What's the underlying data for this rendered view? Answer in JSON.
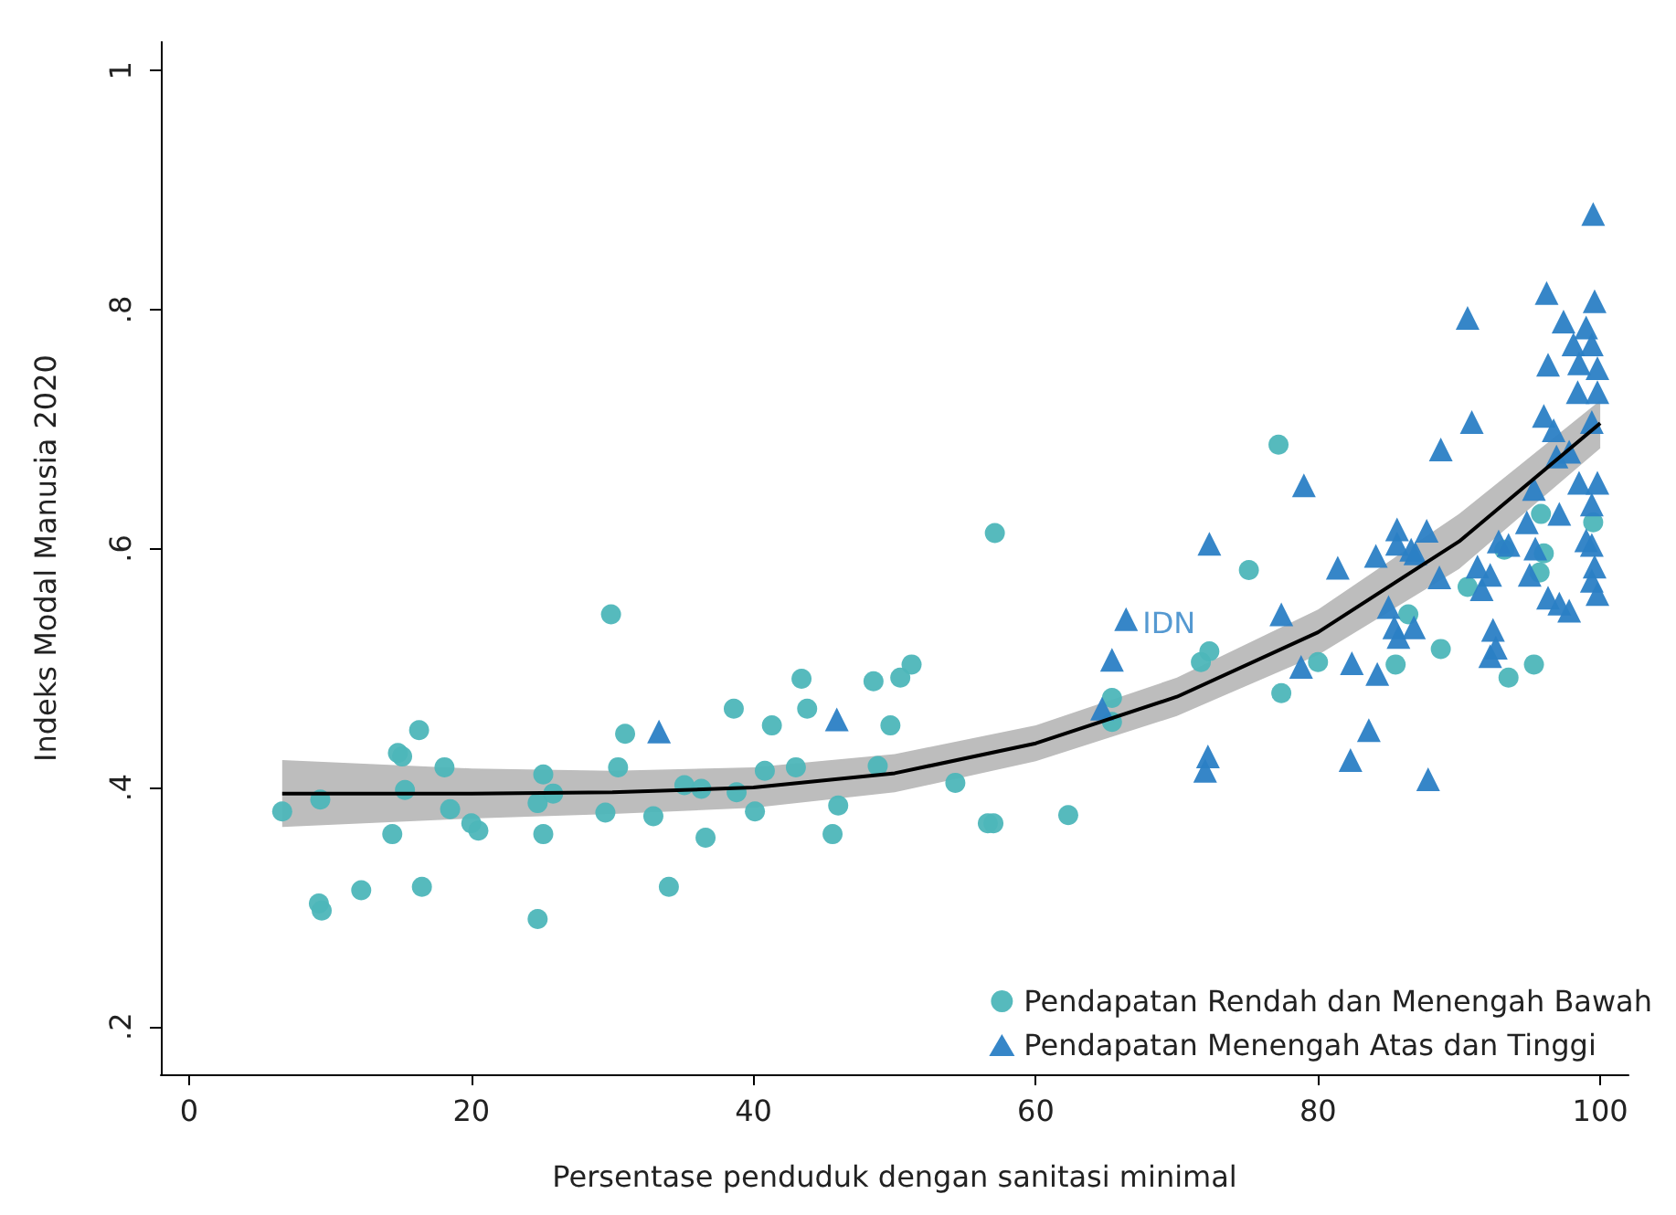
{
  "chart_data": {
    "type": "scatter",
    "xlabel": "Persentase penduduk dengan sanitasi minimal",
    "ylabel": "Indeks Modal Manusia 2020",
    "xlim": [
      -2,
      102
    ],
    "xticks": [
      0,
      20,
      40,
      60,
      80,
      100
    ],
    "ylim": [
      0.16,
      1.024
    ],
    "yticks": [
      {
        "value": 0.2,
        "label": ".2"
      },
      {
        "value": 0.4,
        "label": ".4"
      },
      {
        "value": 0.6,
        "label": ".6"
      },
      {
        "value": 0.8,
        "label": ".8"
      },
      {
        "value": 1,
        "label": "1"
      }
    ],
    "grid": false,
    "legend": "bottom right",
    "annotations": [
      {
        "text": "IDN",
        "x": 66.4,
        "y": 0.541
      }
    ],
    "series": [
      {
        "name": "Pendapatan Rendah dan Menengah Bawah",
        "color": "#4db6b9",
        "marker": "circle",
        "x": [
          6.6,
          9.2,
          9.4,
          9.3,
          12.2,
          14.4,
          14.8,
          15.1,
          15.3,
          16.3,
          16.5,
          18.1,
          18.5,
          20.0,
          20.5,
          24.7,
          24.7,
          25.1,
          25.1,
          25.8,
          29.5,
          29.9,
          30.4,
          30.9,
          32.9,
          34.0,
          35.1,
          36.3,
          36.6,
          38.6,
          38.8,
          40.1,
          40.8,
          41.3,
          43.0,
          43.4,
          43.8,
          45.6,
          46.0,
          48.5,
          48.8,
          49.7,
          50.4,
          51.2,
          54.3,
          56.6,
          57.0,
          57.1,
          62.3,
          65.4,
          65.4,
          71.7,
          72.3,
          75.1,
          77.2,
          77.4,
          80.0,
          85.5,
          86.4,
          88.7,
          90.6,
          93.2,
          93.5,
          95.3,
          95.7,
          95.8,
          96.0,
          99.5
        ],
        "values": [
          0.38,
          0.303,
          0.297,
          0.39,
          0.314,
          0.361,
          0.429,
          0.426,
          0.398,
          0.448,
          0.317,
          0.417,
          0.382,
          0.37,
          0.364,
          0.29,
          0.387,
          0.411,
          0.361,
          0.395,
          0.379,
          0.545,
          0.417,
          0.445,
          0.376,
          0.317,
          0.402,
          0.399,
          0.358,
          0.466,
          0.396,
          0.38,
          0.414,
          0.452,
          0.417,
          0.491,
          0.466,
          0.361,
          0.385,
          0.489,
          0.418,
          0.452,
          0.492,
          0.503,
          0.404,
          0.37,
          0.37,
          0.613,
          0.377,
          0.475,
          0.455,
          0.505,
          0.514,
          0.582,
          0.687,
          0.479,
          0.505,
          0.503,
          0.545,
          0.516,
          0.568,
          0.599,
          0.492,
          0.503,
          0.58,
          0.629,
          0.596,
          0.622
        ]
      },
      {
        "name": "Pendapatan Menengah Atas dan Tinggi",
        "color": "#2b80c5",
        "marker": "triangle",
        "x": [
          33.3,
          45.9,
          66.4,
          65.4,
          64.7,
          79.0,
          72.3,
          77.4,
          78.8,
          82.4,
          84.2,
          83.6,
          82.3,
          72.2,
          72.0,
          81.4,
          84.1,
          85.6,
          85.6,
          87.7,
          86.9,
          85.0,
          85.4,
          85.7,
          86.8,
          87.8,
          99.5,
          96.2,
          90.6,
          99.6,
          97.4,
          99.0,
          98.1,
          99.4,
          98.5,
          99.8,
          96.3,
          98.4,
          99.8,
          90.9,
          96.0,
          96.7,
          88.7,
          99.4,
          97.8,
          96.9,
          95.3,
          98.5,
          99.8,
          99.4,
          94.8,
          97.1,
          99.0,
          86.6,
          92.8,
          93.5,
          95.4,
          99.4,
          91.3,
          92.2,
          95.0,
          99.6,
          88.6,
          91.6,
          96.3,
          97.1,
          97.8,
          99.4,
          99.8,
          92.4,
          92.6,
          92.2
        ],
        "values": [
          0.447,
          0.457,
          0.541,
          0.507,
          0.466,
          0.653,
          0.604,
          0.545,
          0.501,
          0.504,
          0.495,
          0.448,
          0.423,
          0.426,
          0.414,
          0.584,
          0.594,
          0.616,
          0.604,
          0.615,
          0.596,
          0.551,
          0.534,
          0.526,
          0.534,
          0.407,
          0.88,
          0.814,
          0.793,
          0.807,
          0.79,
          0.785,
          0.771,
          0.771,
          0.755,
          0.751,
          0.754,
          0.731,
          0.731,
          0.706,
          0.711,
          0.699,
          0.683,
          0.706,
          0.681,
          0.677,
          0.65,
          0.655,
          0.655,
          0.637,
          0.622,
          0.629,
          0.607,
          0.599,
          0.606,
          0.603,
          0.6,
          0.603,
          0.585,
          0.578,
          0.578,
          0.585,
          0.576,
          0.566,
          0.559,
          0.554,
          0.548,
          0.573,
          0.562,
          0.532,
          0.517,
          0.51
        ]
      },
      {
        "type": "line",
        "color": "#000000",
        "marker": "none",
        "line_style": "solid",
        "x": [
          6.6,
          20,
          30,
          40,
          50,
          60,
          70,
          80,
          90,
          100
        ],
        "values": [
          0.395,
          0.395,
          0.396,
          0.4,
          0.412,
          0.437,
          0.476,
          0.53,
          0.606,
          0.705
        ],
        "lower": [
          0.367,
          0.374,
          0.378,
          0.383,
          0.396,
          0.422,
          0.46,
          0.511,
          0.583,
          0.684
        ],
        "upper": [
          0.423,
          0.416,
          0.414,
          0.417,
          0.428,
          0.452,
          0.492,
          0.549,
          0.629,
          0.724
        ]
      }
    ]
  }
}
